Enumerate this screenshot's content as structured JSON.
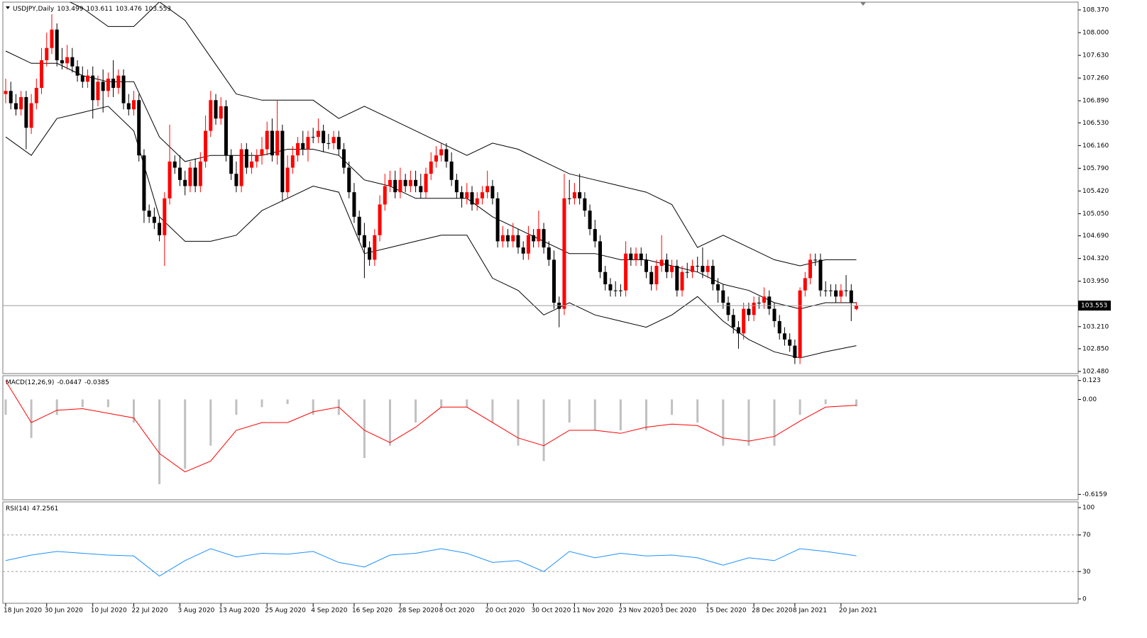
{
  "chart_data": [
    {
      "type": "candlestick",
      "title": "USDJPY,Daily",
      "open": [
        107.0,
        107.05,
        106.85,
        106.75,
        106.95,
        106.45,
        106.85,
        107.1,
        107.55,
        107.75,
        108.05,
        107.55,
        107.5,
        107.6,
        107.45,
        107.3,
        107.2,
        107.3,
        106.9,
        107.2,
        107.05,
        107.25,
        107.1,
        107.3,
        106.85,
        106.75,
        106.9,
        106.0,
        105.1,
        105.0,
        104.9,
        104.7,
        105.3,
        105.9,
        105.8,
        105.6,
        105.5,
        105.8,
        105.5,
        105.9,
        106.4,
        106.9,
        106.6,
        106.8,
        106.0,
        105.7,
        105.5,
        106.1,
        105.8,
        105.9,
        106.0,
        106.1,
        106.4,
        106.0,
        106.4,
        105.4,
        105.8,
        106.0,
        106.2,
        106.1,
        106.3,
        106.3,
        106.4,
        106.2,
        106.2,
        106.3,
        106.1,
        105.8,
        105.4,
        105.0,
        104.7,
        104.5,
        104.3,
        104.7,
        105.2,
        105.5,
        105.6,
        105.4,
        105.6,
        105.5,
        105.6,
        105.5,
        105.4,
        105.7,
        105.9,
        106.0,
        106.1,
        105.9,
        105.6,
        105.4,
        105.3,
        105.4,
        105.2,
        105.3,
        105.4,
        105.5,
        105.3,
        104.6,
        104.7,
        104.6,
        104.7,
        104.5,
        104.4,
        104.7,
        104.6,
        104.8,
        104.5,
        104.3,
        103.6,
        103.5,
        105.3,
        105.3,
        105.4,
        105.3,
        105.1,
        104.8,
        104.6,
        104.1,
        103.9,
        103.8,
        103.8,
        103.8,
        104.4,
        104.3,
        104.4,
        104.3,
        104.1,
        103.9,
        104.2,
        104.3,
        104.1,
        104.2,
        103.8,
        104.1,
        104.1,
        104.2,
        104.2,
        104.1,
        104.2,
        103.9,
        103.8,
        103.6,
        103.4,
        103.2,
        103.1,
        103.5,
        103.4,
        103.6,
        103.6,
        103.7,
        103.5,
        103.3,
        103.1,
        103.0,
        102.9,
        102.7,
        103.8,
        104.0,
        104.3,
        104.3,
        103.8,
        103.8,
        103.8,
        103.7,
        103.8,
        103.8,
        103.499
      ],
      "high": [
        107.25,
        107.2,
        107.0,
        107.05,
        107.05,
        107.0,
        107.25,
        107.75,
        108.0,
        108.3,
        108.15,
        107.75,
        107.8,
        107.75,
        107.55,
        107.45,
        107.4,
        107.45,
        107.3,
        107.4,
        107.35,
        107.55,
        107.4,
        107.4,
        107.0,
        107.05,
        107.0,
        106.1,
        105.2,
        105.15,
        105.0,
        105.4,
        106.5,
        106.0,
        106.0,
        105.75,
        105.9,
        105.95,
        106.05,
        106.65,
        107.05,
        107.0,
        106.95,
        106.9,
        106.1,
        105.9,
        106.2,
        106.2,
        106.05,
        106.1,
        106.3,
        106.55,
        106.6,
        106.9,
        106.5,
        106.0,
        106.15,
        106.3,
        106.4,
        106.4,
        106.45,
        106.6,
        106.5,
        106.35,
        106.4,
        106.4,
        106.2,
        105.9,
        105.55,
        105.1,
        104.9,
        104.6,
        104.8,
        105.35,
        105.7,
        105.75,
        105.75,
        105.8,
        105.7,
        105.75,
        105.75,
        105.7,
        105.8,
        106.05,
        106.15,
        106.2,
        106.2,
        106.05,
        105.7,
        105.5,
        105.55,
        105.5,
        105.4,
        105.5,
        105.75,
        105.6,
        105.4,
        104.85,
        104.8,
        104.9,
        104.8,
        104.6,
        104.85,
        104.8,
        105.1,
        104.9,
        104.6,
        104.45,
        103.7,
        105.7,
        105.6,
        105.55,
        105.7,
        105.4,
        105.2,
        104.95,
        104.7,
        104.2,
        104.0,
        103.95,
        103.9,
        104.6,
        104.5,
        104.5,
        104.5,
        104.4,
        104.2,
        104.3,
        104.7,
        104.4,
        104.3,
        104.3,
        104.2,
        104.25,
        104.3,
        104.35,
        104.5,
        104.3,
        104.3,
        104.0,
        103.9,
        103.7,
        103.5,
        103.3,
        103.6,
        103.6,
        103.7,
        103.7,
        103.85,
        103.8,
        103.6,
        103.4,
        103.2,
        103.1,
        103.0,
        103.85,
        104.1,
        104.4,
        104.4,
        104.4,
        103.95,
        103.9,
        103.9,
        103.9,
        104.05,
        103.9,
        103.611
      ],
      "low": [
        106.85,
        106.75,
        106.65,
        106.65,
        106.1,
        106.35,
        106.75,
        107.0,
        107.45,
        107.65,
        107.45,
        107.4,
        107.4,
        107.35,
        107.2,
        107.1,
        107.1,
        106.6,
        106.8,
        106.7,
        106.95,
        106.95,
        107.0,
        106.75,
        106.65,
        106.65,
        105.9,
        104.9,
        104.9,
        104.8,
        104.6,
        104.2,
        105.2,
        105.7,
        105.5,
        105.35,
        105.4,
        105.4,
        105.4,
        105.8,
        106.3,
        106.5,
        106.5,
        105.9,
        105.6,
        105.4,
        105.4,
        105.7,
        105.7,
        105.8,
        105.85,
        106.0,
        105.9,
        105.85,
        105.25,
        105.3,
        105.7,
        105.9,
        106.0,
        105.9,
        106.2,
        106.2,
        106.05,
        106.1,
        106.1,
        106.0,
        105.7,
        105.3,
        104.9,
        104.6,
        104.0,
        104.2,
        104.2,
        104.6,
        105.1,
        105.4,
        105.3,
        105.3,
        105.4,
        105.4,
        105.4,
        105.3,
        105.3,
        105.6,
        105.8,
        105.9,
        105.8,
        105.5,
        105.3,
        105.15,
        105.2,
        105.1,
        105.1,
        105.2,
        105.3,
        105.2,
        104.5,
        104.5,
        104.5,
        104.5,
        104.4,
        104.3,
        104.3,
        104.5,
        104.5,
        104.4,
        104.2,
        103.5,
        103.2,
        103.4,
        105.2,
        105.2,
        105.2,
        105.0,
        104.7,
        104.5,
        104.0,
        103.8,
        103.7,
        103.7,
        103.7,
        103.7,
        104.2,
        104.2,
        104.2,
        104.0,
        103.8,
        103.8,
        104.1,
        104.0,
        104.0,
        103.7,
        103.7,
        104.0,
        104.0,
        104.1,
        104.0,
        104.0,
        103.8,
        103.6,
        103.5,
        103.3,
        103.1,
        102.85,
        103.0,
        103.3,
        103.3,
        103.5,
        103.5,
        103.4,
        103.2,
        103.0,
        102.9,
        102.8,
        102.6,
        102.6,
        103.7,
        103.9,
        104.2,
        103.7,
        103.7,
        103.7,
        103.6,
        103.6,
        103.7,
        103.3,
        103.476
      ],
      "close": [
        107.05,
        106.85,
        106.75,
        106.95,
        106.45,
        106.85,
        107.1,
        107.55,
        107.75,
        108.05,
        107.55,
        107.5,
        107.6,
        107.45,
        107.3,
        107.2,
        107.3,
        106.9,
        107.2,
        107.05,
        107.25,
        107.1,
        107.3,
        106.85,
        106.75,
        106.9,
        106.0,
        105.1,
        105.0,
        104.9,
        104.7,
        105.3,
        105.9,
        105.8,
        105.6,
        105.5,
        105.8,
        105.5,
        105.9,
        106.4,
        106.9,
        106.6,
        106.8,
        106.0,
        105.7,
        105.5,
        106.1,
        105.8,
        105.9,
        106.0,
        106.1,
        106.4,
        106.0,
        106.4,
        105.4,
        105.8,
        106.0,
        106.2,
        106.1,
        106.3,
        106.3,
        106.4,
        106.2,
        106.2,
        106.3,
        106.1,
        105.8,
        105.4,
        105.0,
        104.7,
        104.5,
        104.3,
        104.7,
        105.2,
        105.5,
        105.6,
        105.4,
        105.6,
        105.5,
        105.6,
        105.5,
        105.4,
        105.7,
        105.9,
        106.0,
        106.1,
        105.9,
        105.6,
        105.4,
        105.3,
        105.4,
        105.2,
        105.3,
        105.4,
        105.5,
        105.3,
        104.6,
        104.7,
        104.6,
        104.7,
        104.5,
        104.4,
        104.7,
        104.6,
        104.8,
        104.5,
        104.3,
        103.6,
        103.5,
        105.3,
        105.3,
        105.4,
        105.3,
        105.1,
        104.8,
        104.6,
        104.1,
        103.9,
        103.8,
        103.8,
        103.8,
        104.4,
        104.3,
        104.4,
        104.3,
        104.1,
        103.9,
        104.2,
        104.3,
        104.1,
        104.2,
        103.8,
        104.1,
        104.1,
        104.2,
        104.2,
        104.1,
        104.2,
        103.9,
        103.8,
        103.6,
        103.4,
        103.2,
        103.1,
        103.5,
        103.4,
        103.6,
        103.6,
        103.7,
        103.5,
        103.3,
        103.1,
        103.0,
        102.9,
        102.7,
        103.8,
        104.0,
        104.3,
        104.3,
        103.8,
        103.8,
        103.8,
        103.7,
        103.8,
        103.8,
        103.6,
        103.553
      ],
      "bull_color": "#ff0000",
      "bear_color": "#000000",
      "price_line_color": "#9a9a9a",
      "bands": {
        "color": "#000000",
        "x": [
          0,
          5,
          10,
          15,
          20,
          25,
          30,
          35,
          40,
          45,
          50,
          55,
          60,
          65,
          70,
          75,
          80,
          85,
          90,
          95,
          100,
          105,
          110,
          115,
          120,
          125,
          130,
          135,
          140,
          145,
          150,
          155,
          160,
          166
        ],
        "upper": [
          109.0,
          108.9,
          108.6,
          108.4,
          108.1,
          108.1,
          108.5,
          108.2,
          107.6,
          107.0,
          106.9,
          106.9,
          106.9,
          106.6,
          106.8,
          106.6,
          106.4,
          106.2,
          106.0,
          106.2,
          106.1,
          105.9,
          105.7,
          105.6,
          105.5,
          105.4,
          105.2,
          104.5,
          104.7,
          104.5,
          104.3,
          104.2,
          104.3,
          104.3
        ],
        "middle": [
          107.7,
          107.5,
          107.5,
          107.3,
          107.2,
          107.2,
          106.3,
          105.9,
          106.0,
          106.0,
          106.0,
          106.1,
          106.1,
          106.0,
          105.6,
          105.5,
          105.3,
          105.3,
          105.3,
          105.0,
          104.8,
          104.6,
          104.4,
          104.4,
          104.3,
          104.3,
          104.2,
          104.1,
          103.9,
          103.8,
          103.6,
          103.5,
          103.6,
          103.6
        ],
        "lower": [
          106.3,
          106.0,
          106.6,
          106.7,
          106.8,
          106.4,
          105.0,
          104.6,
          104.6,
          104.7,
          105.1,
          105.3,
          105.5,
          105.4,
          104.4,
          104.5,
          104.6,
          104.7,
          104.7,
          104.0,
          103.8,
          103.4,
          103.6,
          103.4,
          103.3,
          103.2,
          103.4,
          103.7,
          103.3,
          103.0,
          102.8,
          102.7,
          102.8,
          102.9
        ]
      },
      "ylim": [
        102.445,
        108.497
      ],
      "yticks": [
        {
          "value": 108.37,
          "label": "108.370"
        },
        {
          "value": 108.0,
          "label": "108.000"
        },
        {
          "value": 107.63,
          "label": "107.630"
        },
        {
          "value": 107.26,
          "label": "107.260"
        },
        {
          "value": 106.89,
          "label": "106.890"
        },
        {
          "value": 106.53,
          "label": "106.530"
        },
        {
          "value": 106.16,
          "label": "106.160"
        },
        {
          "value": 105.79,
          "label": "105.790"
        },
        {
          "value": 105.42,
          "label": "105.420"
        },
        {
          "value": 105.05,
          "label": "105.050"
        },
        {
          "value": 104.69,
          "label": "104.690"
        },
        {
          "value": 104.32,
          "label": "104.320"
        },
        {
          "value": 103.95,
          "label": "103.950"
        },
        {
          "value": 103.58,
          "label": "103.580"
        },
        {
          "value": 103.21,
          "label": "103.210"
        },
        {
          "value": 102.85,
          "label": "102.850"
        },
        {
          "value": 102.48,
          "label": "102.480"
        }
      ],
      "xticks": [
        {
          "value": 0,
          "label": "18 Jun 2020"
        },
        {
          "value": 8,
          "label": "30 Jun 2020"
        },
        {
          "value": 17,
          "label": "10 Jul 2020"
        },
        {
          "value": 25,
          "label": "22 Jul 2020"
        },
        {
          "value": 34,
          "label": "3 Aug 2020"
        },
        {
          "value": 42,
          "label": "13 Aug 2020"
        },
        {
          "value": 51,
          "label": "25 Aug 2020"
        },
        {
          "value": 60,
          "label": "4 Sep 2020"
        },
        {
          "value": 68,
          "label": "16 Sep 2020"
        },
        {
          "value": 77,
          "label": "28 Sep 2020"
        },
        {
          "value": 85,
          "label": "8 Oct 2020"
        },
        {
          "value": 94,
          "label": "20 Oct 2020"
        },
        {
          "value": 103,
          "label": "30 Oct 2020"
        },
        {
          "value": 111,
          "label": "11 Nov 2020"
        },
        {
          "value": 120,
          "label": "23 Nov 2020"
        },
        {
          "value": 128,
          "label": "3 Dec 2020"
        },
        {
          "value": 137,
          "label": "15 Dec 2020"
        },
        {
          "value": 146,
          "label": "28 Dec 2020"
        },
        {
          "value": 154,
          "label": "8 Jan 2021"
        },
        {
          "value": 163,
          "label": "20 Jan 2021"
        }
      ]
    },
    {
      "type": "macd",
      "title": "MACD(12,26,9)",
      "hist_color": "#c0c0c0",
      "signal_color": "#ff0000",
      "x": [
        0,
        5,
        10,
        15,
        20,
        25,
        30,
        35,
        40,
        45,
        50,
        55,
        60,
        65,
        70,
        75,
        80,
        85,
        90,
        95,
        100,
        105,
        110,
        115,
        120,
        125,
        130,
        135,
        140,
        145,
        150,
        155,
        160,
        166
      ],
      "histogram": [
        -0.1,
        -0.25,
        -0.1,
        -0.05,
        -0.05,
        -0.15,
        -0.55,
        -0.45,
        -0.3,
        -0.1,
        -0.05,
        -0.03,
        -0.1,
        -0.1,
        -0.38,
        -0.3,
        -0.15,
        -0.05,
        -0.05,
        -0.15,
        -0.3,
        -0.4,
        -0.15,
        -0.2,
        -0.2,
        -0.2,
        -0.1,
        -0.15,
        -0.3,
        -0.3,
        -0.3,
        -0.1,
        -0.03,
        -0.0447
      ],
      "signal": [
        0.12,
        -0.15,
        -0.07,
        -0.06,
        -0.09,
        -0.12,
        -0.35,
        -0.47,
        -0.4,
        -0.2,
        -0.15,
        -0.15,
        -0.08,
        -0.05,
        -0.2,
        -0.28,
        -0.18,
        -0.05,
        -0.05,
        -0.15,
        -0.25,
        -0.3,
        -0.2,
        -0.2,
        -0.22,
        -0.18,
        -0.16,
        -0.17,
        -0.25,
        -0.27,
        -0.24,
        -0.14,
        -0.05,
        -0.0385
      ],
      "ylim": [
        -0.651,
        0.154
      ],
      "yticks": [
        0.123,
        {
          "value": 0,
          "label": "0.00"
        },
        -0.6159
      ]
    },
    {
      "type": "rsi",
      "title": "RSI(14)",
      "color": "#1e90ff",
      "x": [
        0,
        5,
        10,
        15,
        20,
        25,
        30,
        35,
        40,
        45,
        50,
        55,
        60,
        65,
        70,
        75,
        80,
        85,
        90,
        95,
        100,
        105,
        110,
        115,
        120,
        125,
        130,
        135,
        140,
        145,
        150,
        155,
        160,
        166
      ],
      "values": [
        42,
        48,
        52,
        50,
        48,
        47,
        25,
        42,
        55,
        46,
        50,
        49,
        52,
        40,
        35,
        48,
        50,
        55,
        50,
        40,
        42,
        30,
        52,
        45,
        50,
        47,
        48,
        45,
        37,
        45,
        42,
        55,
        52,
        47.2561
      ],
      "ylim": [
        -4.7,
        106.2
      ],
      "yticks": [
        100,
        70,
        30,
        0
      ]
    }
  ]
}
